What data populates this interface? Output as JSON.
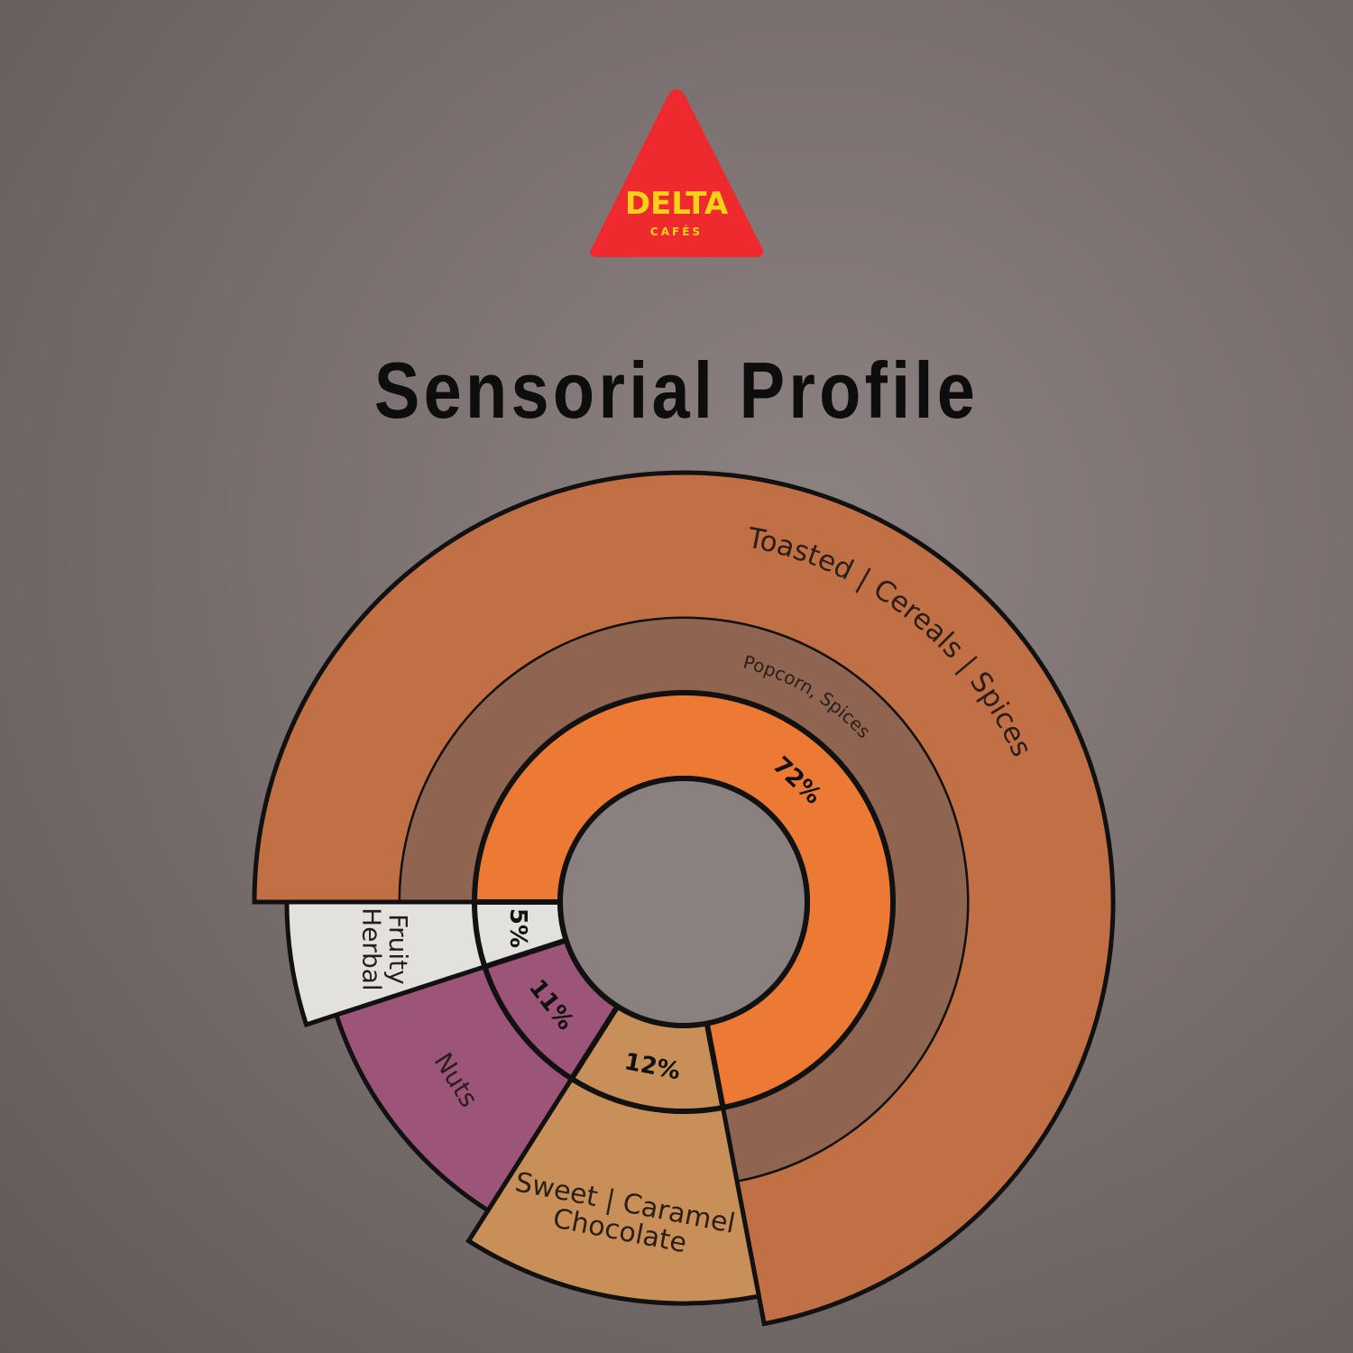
{
  "logo": {
    "brand": "DELTA",
    "sub": "CAFÉS",
    "color": "#EE2A2E",
    "text_color": "#F7D117"
  },
  "title": "Sensorial Profile",
  "chart_data": {
    "type": "sunburst",
    "title": "Sensorial Profile",
    "segments": [
      {
        "name": "Toasted | Cereals | Spices",
        "sub": "Popcorn, Spices",
        "value": 72,
        "label": "72%",
        "inner_color": "#EC7A35",
        "mid_color": "#8F6450",
        "outer_color": "#C16F45"
      },
      {
        "name": "Sweet | Caramel",
        "name2": "Chocolate",
        "value": 12,
        "label": "12%",
        "inner_color": "#C98F58",
        "outer_color": "#C98F58"
      },
      {
        "name": "Nuts",
        "value": 11,
        "label": "11%",
        "inner_color": "#9C5578",
        "outer_color": "#9C5578"
      },
      {
        "name": "Fruity",
        "name2": "Herbal",
        "value": 5,
        "label": "5%",
        "inner_color": "#E3E1DD",
        "outer_color": "#E3E1DD"
      }
    ]
  }
}
